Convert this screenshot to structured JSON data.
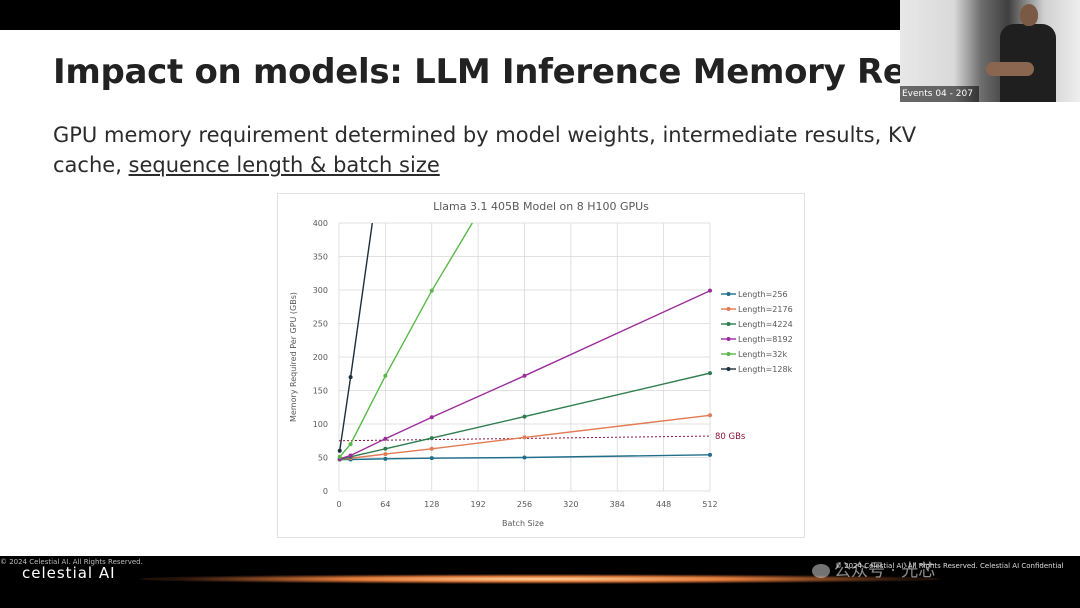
{
  "slide": {
    "title": "Impact on models: LLM Inference Memory Require",
    "subtitle_prefix": "GPU memory requirement determined by model weights, intermediate results, KV cache, ",
    "subtitle_emphasis": "sequence length & batch size"
  },
  "video": {
    "label": "Events 04 - 207"
  },
  "footer": {
    "copyright_left": "© 2024 Celestial AI. All Rights Reserved.",
    "brand": "celestial AI",
    "copyright_right": "© 2024 Celestial AI. All Rights Reserved. Celestial AI Confidential",
    "watermark": "公众号 · 光芯"
  },
  "colors": {
    "Length=256": "#1f6f8b",
    "Length=2176": "#e07b54",
    "Length=4224": "#2e7d4f",
    "Length=8192": "#9b2d9b",
    "Length=32k": "#5ab84a",
    "Length=128k": "#1d2f3a",
    "threshold": "#8b1538"
  },
  "chart_data": {
    "type": "line",
    "title": "Llama 3.1 405B Model on 8 H100 GPUs",
    "xlabel": "Batch Size",
    "ylabel": "Memory Required Per GPU (GBs)",
    "xlim": [
      0,
      512
    ],
    "ylim": [
      0,
      400
    ],
    "xticks": [
      0,
      64,
      128,
      192,
      256,
      320,
      384,
      448,
      512
    ],
    "yticks": [
      0,
      50,
      100,
      150,
      200,
      250,
      300,
      350,
      400
    ],
    "grid": true,
    "legend_position": "right",
    "series": [
      {
        "name": "Length=256",
        "x": [
          1,
          16,
          64,
          128,
          256,
          512
        ],
        "y": [
          47,
          47,
          48,
          49,
          50,
          54
        ]
      },
      {
        "name": "Length=2176",
        "x": [
          1,
          16,
          64,
          128,
          256,
          512
        ],
        "y": [
          47,
          49,
          55,
          63,
          80,
          113
        ]
      },
      {
        "name": "Length=4224",
        "x": [
          1,
          16,
          64,
          128,
          256,
          512
        ],
        "y": [
          47,
          51,
          63,
          79,
          111,
          176
        ]
      },
      {
        "name": "Length=8192",
        "x": [
          1,
          16,
          64,
          128,
          256,
          512
        ],
        "y": [
          48,
          53,
          78,
          110,
          172,
          299
        ]
      },
      {
        "name": "Length=32k",
        "x": [
          1,
          16,
          64,
          128,
          184
        ],
        "y": [
          51,
          70,
          172,
          299,
          400
        ]
      },
      {
        "name": "Length=128k",
        "x": [
          1,
          16,
          46
        ],
        "y": [
          60,
          170,
          400
        ]
      }
    ],
    "threshold": {
      "label": "80 GBs",
      "from": 75,
      "to": 82
    }
  }
}
